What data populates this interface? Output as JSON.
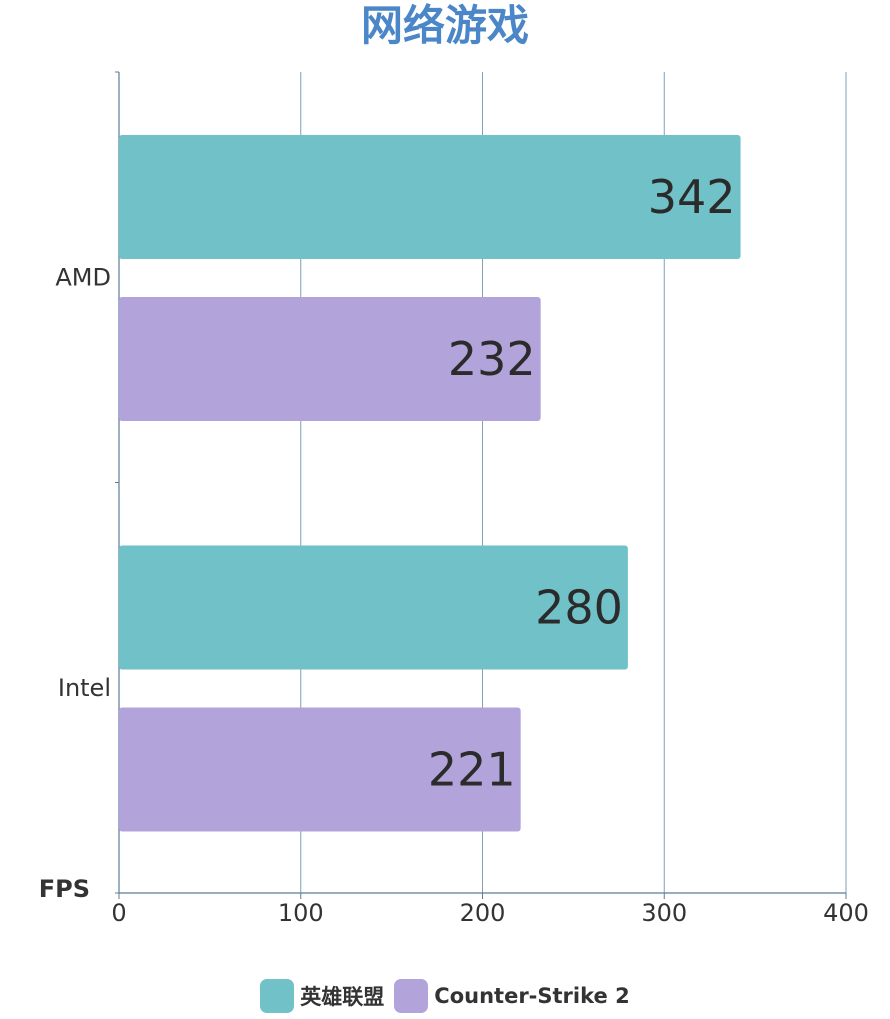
{
  "chart_data": {
    "type": "bar",
    "orientation": "horizontal",
    "title": "网络游戏",
    "xlabel": "FPS",
    "ylabel": "",
    "categories": [
      "AMD",
      "Intel"
    ],
    "xlim": [
      0,
      400
    ],
    "xticks": [
      0,
      100,
      200,
      300,
      400
    ],
    "grid": true,
    "legend_position": "bottom",
    "series": [
      {
        "name": "英雄联盟",
        "values": [
          342,
          280
        ],
        "color": "#70c2c8"
      },
      {
        "name": "Counter-Strike 2",
        "values": [
          232,
          221
        ],
        "color": "#b2a4db"
      }
    ]
  }
}
